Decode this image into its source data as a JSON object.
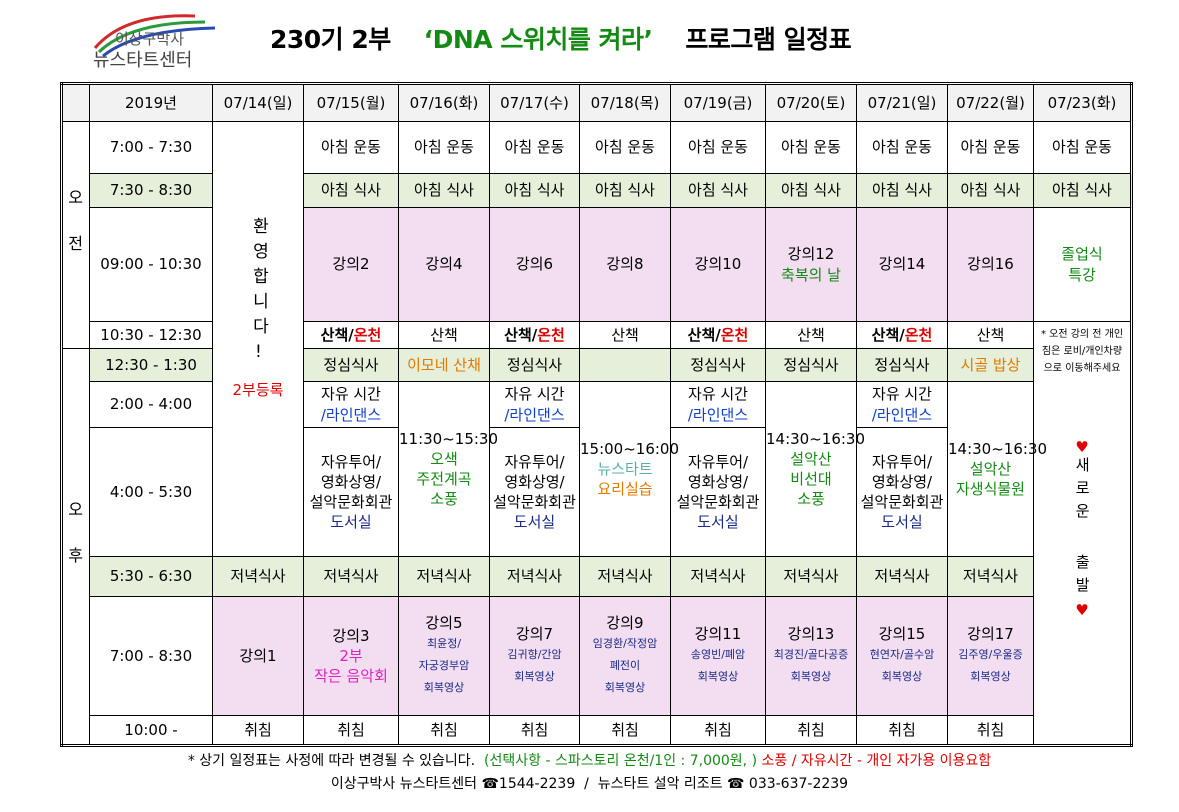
{
  "header": {
    "logo_line1": "이상구박사",
    "logo_line2": "뉴스타트센터",
    "title_part1": "230기 2부",
    "title_part2": "‘DNA 스위치를 켜라’",
    "title_part3": "프로그램 일정표"
  },
  "table": {
    "year": "2019년",
    "dates": [
      "07/14(일)",
      "07/15(월)",
      "07/16(화)",
      "07/17(수)",
      "07/18(목)",
      "07/19(금)",
      "07/20(토)",
      "07/21(일)",
      "07/22(월)",
      "07/23(화)"
    ],
    "periods": [
      "오전",
      "오후"
    ],
    "times": [
      "7:00  -  7:30",
      "7:30  -  8:30",
      "09:00  -  10:30",
      "10:30  -  12:30",
      "12:30  -  1:30",
      "2:00  -  4:00",
      "4:00  -  5:30",
      "5:30  -  6:30",
      "7:00  -  8:30",
      "10:00  -"
    ],
    "rows": [
      [
        [
          "환영합니다!",
          "2부등록"
        ],
        [
          "아침 운동"
        ],
        [
          "아침 운동"
        ],
        [
          "아침 운동"
        ],
        [
          "아침 운동"
        ],
        [
          "아침 운동"
        ],
        [
          "아침 운동"
        ],
        [
          "아침 운동"
        ],
        [
          "아침 운동"
        ],
        [
          "아침 운동"
        ]
      ],
      [
        [
          "아침 식사"
        ],
        [
          "아침 식사"
        ],
        [
          "아침 식사"
        ],
        [
          "아침 식사"
        ],
        [
          "아침 식사"
        ],
        [
          "아침 식사"
        ],
        [
          "아침 식사"
        ],
        [
          "아침 식사"
        ],
        [
          "아침 식사"
        ]
      ],
      [
        [
          "강의2"
        ],
        [
          "강의4"
        ],
        [
          "강의6"
        ],
        [
          "강의8"
        ],
        [
          "강의10"
        ],
        [
          "강의12",
          "축복의 날"
        ],
        [
          "강의14"
        ],
        [
          "강의16"
        ],
        [
          "졸업식",
          "특강"
        ]
      ],
      [
        [
          "산책/",
          "온천"
        ],
        [
          "산책"
        ],
        [
          "산책/",
          "온천"
        ],
        [
          "산책"
        ],
        [
          "산책/",
          "온천"
        ],
        [
          "산책"
        ],
        [
          "산책/",
          "온천"
        ],
        [
          "산책"
        ],
        [
          "* 오전 강의 전 개인 짐은 로비/개인차량으로 이동해주세요",
          "♥",
          "새로운",
          "출발",
          "♥"
        ]
      ],
      [
        [
          "정심식사"
        ],
        [
          "이모네 산채"
        ],
        [
          "정심식사"
        ],
        [
          "정심식사"
        ],
        [
          "정심식사"
        ],
        [
          "정심식사"
        ],
        [
          "시골 밥상"
        ]
      ],
      [
        [
          "자유 시간",
          "/라인댄스"
        ],
        [
          "11:30~15:30",
          "오색",
          "주전계곡",
          "소풍"
        ],
        [
          "자유 시간",
          "/라인댄스"
        ],
        [
          "15:00~16:00",
          "뉴스타트",
          "요리실습"
        ],
        [
          "자유 시간",
          "/라인댄스"
        ],
        [
          "14:30~16:30",
          "설악산",
          "비선대",
          "소풍"
        ],
        [
          "자유 시간",
          "/라인댄스"
        ],
        [
          "14:30~16:30",
          "설악산",
          "자생식물원"
        ]
      ],
      [
        [
          "자유투어/",
          "영화상영/",
          "설악문화회관",
          "도서실"
        ],
        [
          "자유투어/",
          "영화상영/",
          "설악문화회관",
          "도서실"
        ],
        [
          "자유투어/",
          "영화상영/",
          "설악문화회관",
          "도서실"
        ],
        [
          "자유투어/",
          "영화상영/",
          "설악문화회관",
          "도서실"
        ]
      ],
      [
        [
          "저녁식사"
        ],
        [
          "저녁식사"
        ],
        [
          "저녁식사"
        ],
        [
          "저녁식사"
        ],
        [
          "저녁식사"
        ],
        [
          "저녁식사"
        ],
        [
          "저녁식사"
        ],
        [
          "저녁식사"
        ],
        [
          "저녁식사"
        ]
      ],
      [
        [
          "강의1"
        ],
        [
          "강의3",
          "2부",
          "작은 음악회"
        ],
        [
          "강의5",
          "최윤정/",
          "자궁경부암",
          "회복영상"
        ],
        [
          "강의7",
          "김귀향/간암",
          "회복영상"
        ],
        [
          "강의9",
          "임경환/작정암",
          "폐전이",
          "회복영상"
        ],
        [
          "강의11",
          "송영빈/폐암",
          "회복영상"
        ],
        [
          "강의13",
          "최경진/골다공증",
          "회복영상"
        ],
        [
          "강의15",
          "현연자/골수암",
          "회복영상"
        ],
        [
          "강의17",
          "김주영/우울증",
          "회복영상"
        ]
      ],
      [
        [
          "취침"
        ],
        [
          "취침"
        ],
        [
          "취침"
        ],
        [
          "취침"
        ],
        [
          "취침"
        ],
        [
          "취침"
        ],
        [
          "취침"
        ],
        [
          "취침"
        ],
        [
          "취침"
        ]
      ]
    ]
  },
  "footer": {
    "note": "* 상기 일정표는 사정에 따라 변경될 수 있습니다.",
    "option": "(선택사항 - 스파스토리 온천/1인 : 7,000원, )",
    "warning": "소풍 / 자유시간 - 개인 자가용 이용요함",
    "contact": "이상구박사 뉴스타트센터 ☎1544-2239  /  뉴스타트 설악 리조트 ☎ 033-637-2239"
  }
}
